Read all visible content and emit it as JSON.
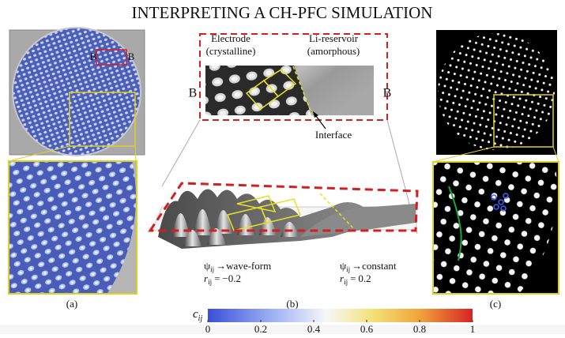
{
  "title": "INTERPRETING A CH-PFC SIMULATION",
  "panel_a": {
    "marker_left": "B",
    "marker_right": "B",
    "caption": "(a)"
  },
  "panel_b": {
    "electrode": {
      "name": "Electrode",
      "phase": "(crystalline)"
    },
    "reservoir": {
      "name": "Li-reservoir",
      "phase": "(amorphous)"
    },
    "section_left": "B",
    "section_right": "B",
    "interface": "Interface",
    "left_note": {
      "field": "ψ",
      "field_subscript": "ij",
      "arrow": "→",
      "state": "wave-form",
      "param": "r",
      "param_subscript": "ij",
      "equals": "=",
      "value": "−0.2"
    },
    "right_note": {
      "field": "ψ",
      "field_subscript": "ij",
      "arrow": "→",
      "state": "constant",
      "param": "r",
      "param_subscript": "ij",
      "equals": "=",
      "value": "0.2"
    },
    "caption": "(b)"
  },
  "panel_c": {
    "caption": "(c)"
  },
  "colorbar": {
    "label": "c",
    "label_subscript": "ij",
    "lim": [
      0,
      1
    ],
    "ticks": [
      0,
      0.2,
      0.4,
      0.6,
      0.8,
      1
    ]
  }
}
